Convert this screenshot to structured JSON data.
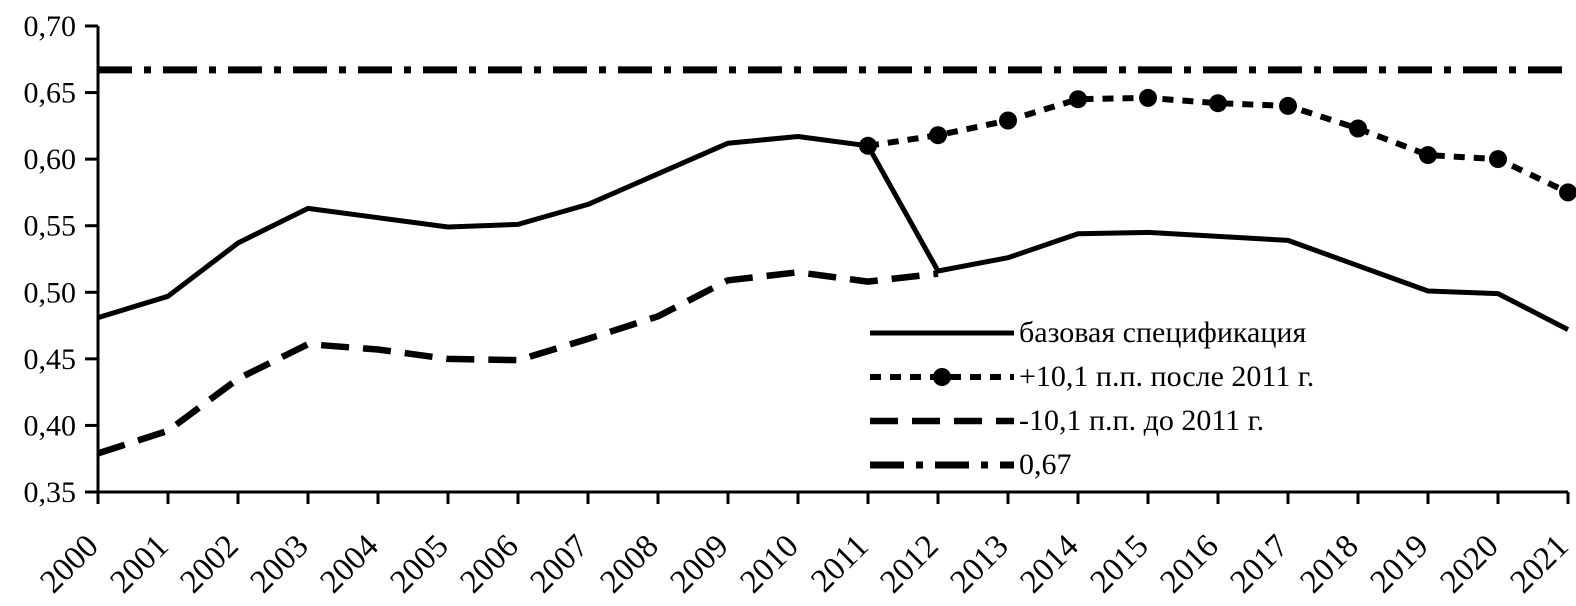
{
  "chart_data": {
    "type": "line",
    "title": "",
    "x_years": [
      2000,
      2001,
      2002,
      2003,
      2004,
      2005,
      2006,
      2007,
      2008,
      2009,
      2010,
      2011,
      2012,
      2013,
      2014,
      2015,
      2016,
      2017,
      2018,
      2019,
      2020,
      2021
    ],
    "xtick_labels": [
      "2000",
      "2001",
      "2002",
      "2003",
      "2004",
      "2005",
      "2006",
      "2007",
      "2008",
      "2009",
      "2010",
      "2011",
      "2012",
      "2013",
      "2014",
      "2015",
      "2016",
      "2017",
      "2018",
      "2019",
      "2020",
      "2021"
    ],
    "ytick_labels": [
      "0,70",
      "0,65",
      "0,60",
      "0,55",
      "0,50",
      "0,45",
      "0,40",
      "0,35"
    ],
    "ylim": [
      0.35,
      0.7
    ],
    "ytick_step": 0.05,
    "grid": false,
    "background_color": "#ffffff",
    "line_color": "#000000",
    "legend_position": "inside-right-middle",
    "series": [
      {
        "id": "base",
        "name": "базовая спецификация",
        "style": "solid",
        "values": [
          0.481,
          0.497,
          0.537,
          0.563,
          0.556,
          0.549,
          0.551,
          0.566,
          0.589,
          0.612,
          0.617,
          0.61,
          0.516,
          0.526,
          0.544,
          0.545,
          0.542,
          0.539,
          0.52,
          0.501,
          0.499,
          0.472
        ]
      },
      {
        "id": "plus-after-2011",
        "name": "+10,1 п.п. после 2011 г.",
        "style": "dotted_marker",
        "values": [
          null,
          null,
          null,
          null,
          null,
          null,
          null,
          null,
          null,
          null,
          null,
          0.61,
          0.618,
          0.629,
          0.645,
          0.646,
          0.642,
          0.64,
          0.623,
          0.603,
          0.6,
          0.575
        ]
      },
      {
        "id": "minus-before-2011",
        "name": "-10,1 п.п. до 2011 г.",
        "style": "dashed",
        "values": [
          0.379,
          0.396,
          0.435,
          0.461,
          0.457,
          0.45,
          0.449,
          0.465,
          0.482,
          0.509,
          0.515,
          0.508,
          0.514,
          null,
          null,
          null,
          null,
          null,
          null,
          null,
          null,
          null
        ]
      },
      {
        "id": "ref-067",
        "name": "0,67",
        "style": "dashdot",
        "reference_value": 0.667,
        "values": [
          0.667,
          0.667,
          0.667,
          0.667,
          0.667,
          0.667,
          0.667,
          0.667,
          0.667,
          0.667,
          0.667,
          0.667,
          0.667,
          0.667,
          0.667,
          0.667,
          0.667,
          0.667,
          0.667,
          0.667,
          0.667,
          0.667
        ]
      }
    ]
  }
}
